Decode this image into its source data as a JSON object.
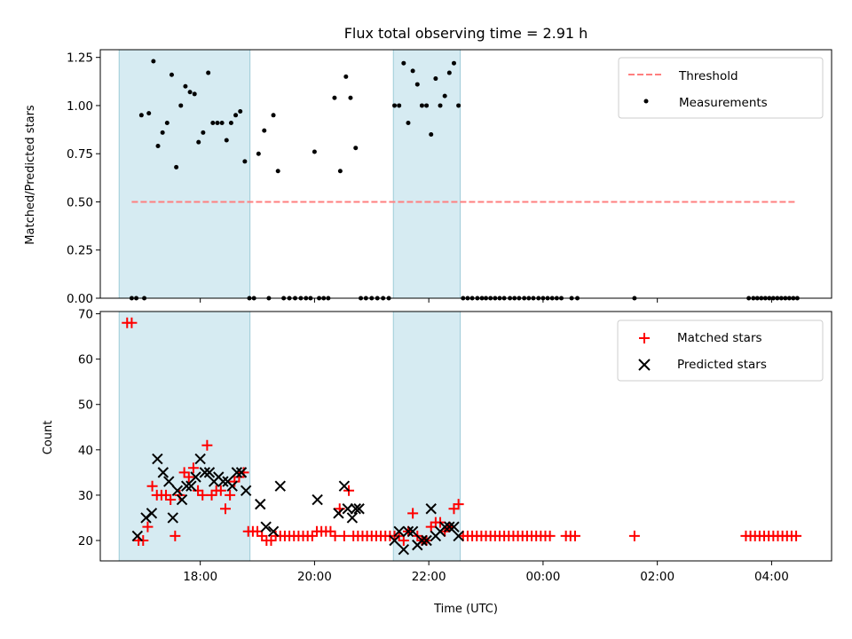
{
  "title": "Flux total observing time = 2.91 h",
  "chart_data": [
    {
      "type": "scatter",
      "panel": "top",
      "ylabel": "Matched/Predicted stars",
      "ylim": [
        0,
        1.29
      ],
      "yticks": [
        0,
        0.25,
        0.5,
        0.75,
        1.0,
        1.25
      ],
      "ytick_labels": [
        "0.00",
        "0.25",
        "0.50",
        "0.75",
        "1.00",
        "1.25"
      ],
      "xlim": [
        16.25,
        29.05
      ],
      "legend": {
        "position": "top-right",
        "entries": [
          "Threshold",
          "Measurements"
        ]
      },
      "threshold": {
        "name": "Threshold",
        "value": 0.5,
        "x_range": [
          16.8,
          28.45
        ],
        "color": "#ff7f7f"
      },
      "shaded_intervals": [
        [
          16.58,
          18.87
        ],
        [
          21.38,
          22.55
        ]
      ],
      "series": [
        {
          "name": "Measurements",
          "color": "#000000",
          "x": [
            16.8,
            16.88,
            16.97,
            17.02,
            17.1,
            17.18,
            17.26,
            17.34,
            17.42,
            17.5,
            17.58,
            17.66,
            17.74,
            17.82,
            17.9,
            17.97,
            18.05,
            18.14,
            18.22,
            18.3,
            18.38,
            18.46,
            18.54,
            18.62,
            18.7,
            18.78,
            18.86,
            18.94,
            19.02,
            19.12,
            19.2,
            19.28,
            19.36,
            19.46,
            19.56,
            19.66,
            19.76,
            19.85,
            19.93,
            20.0,
            20.08,
            20.16,
            20.24,
            20.35,
            20.45,
            20.55,
            20.63,
            20.72,
            20.81,
            20.9,
            21.0,
            21.1,
            21.2,
            21.3,
            21.4,
            21.48,
            21.56,
            21.64,
            21.72,
            21.8,
            21.88,
            21.96,
            22.04,
            22.12,
            22.2,
            22.28,
            22.36,
            22.44,
            22.52,
            22.6,
            22.68,
            22.76,
            22.85,
            22.93,
            23.0,
            23.08,
            23.16,
            23.24,
            23.32,
            23.42,
            23.5,
            23.58,
            23.67,
            23.75,
            23.83,
            23.92,
            24.0,
            24.08,
            24.16,
            24.24,
            24.32,
            24.5,
            24.6,
            25.6,
            27.6,
            27.68,
            27.75,
            27.82,
            27.89,
            27.96,
            28.03,
            28.1,
            28.17,
            28.24,
            28.31,
            28.38,
            28.45
          ],
          "y": [
            0.0,
            0.0,
            0.95,
            0.0,
            0.96,
            1.23,
            0.79,
            0.86,
            0.91,
            1.16,
            0.68,
            1.0,
            1.1,
            1.07,
            1.06,
            0.81,
            0.86,
            1.17,
            0.91,
            0.91,
            0.91,
            0.82,
            0.91,
            0.95,
            0.97,
            0.71,
            0.0,
            0.0,
            0.75,
            0.87,
            0.0,
            0.95,
            0.66,
            0.0,
            0.0,
            0.0,
            0.0,
            0.0,
            0.0,
            0.76,
            0.0,
            0.0,
            0.0,
            1.04,
            0.66,
            1.15,
            1.04,
            0.78,
            0.0,
            0.0,
            0.0,
            0.0,
            0.0,
            0.0,
            1.0,
            1.0,
            1.22,
            0.91,
            1.18,
            1.11,
            1.0,
            1.0,
            0.85,
            1.14,
            1.0,
            1.05,
            1.17,
            1.22,
            1.0,
            0.0,
            0.0,
            0.0,
            0.0,
            0.0,
            0.0,
            0.0,
            0.0,
            0.0,
            0.0,
            0.0,
            0.0,
            0.0,
            0.0,
            0.0,
            0.0,
            0.0,
            0.0,
            0.0,
            0.0,
            0.0,
            0.0,
            0.0,
            0.0,
            0.0,
            0.0,
            0.0,
            0.0,
            0.0,
            0.0,
            0.0,
            0.0,
            0.0,
            0.0,
            0.0,
            0.0,
            0.0,
            0.0
          ]
        }
      ]
    },
    {
      "type": "scatter",
      "panel": "bottom",
      "xlabel": "Time (UTC)",
      "ylabel": "Count",
      "ylim": [
        15.5,
        70.5
      ],
      "yticks": [
        20,
        30,
        40,
        50,
        60,
        70
      ],
      "ytick_labels": [
        "20",
        "30",
        "40",
        "50",
        "60",
        "70"
      ],
      "xlim": [
        16.25,
        29.05
      ],
      "xticks": [
        18,
        20,
        22,
        24,
        26,
        28
      ],
      "xtick_labels": [
        "18:00",
        "20:00",
        "22:00",
        "00:00",
        "02:00",
        "04:00"
      ],
      "legend": {
        "position": "top-right",
        "entries": [
          "Matched stars",
          "Predicted stars"
        ]
      },
      "shaded_intervals": [
        [
          16.58,
          18.87
        ],
        [
          21.38,
          22.55
        ]
      ],
      "series": [
        {
          "name": "Matched stars",
          "marker": "+",
          "color": "#ff0000",
          "x": [
            16.72,
            16.8,
            16.92,
            17.0,
            17.08,
            17.16,
            17.24,
            17.32,
            17.4,
            17.48,
            17.56,
            17.64,
            17.72,
            17.8,
            17.88,
            17.96,
            18.04,
            18.12,
            18.2,
            18.28,
            18.36,
            18.44,
            18.52,
            18.6,
            18.68,
            18.76,
            18.84,
            18.92,
            19.0,
            19.08,
            19.16,
            19.24,
            19.32,
            19.4,
            19.48,
            19.56,
            19.64,
            19.72,
            19.8,
            19.88,
            19.96,
            20.04,
            20.12,
            20.2,
            20.28,
            20.36,
            20.44,
            20.52,
            20.6,
            20.68,
            20.76,
            20.84,
            20.92,
            21.0,
            21.08,
            21.16,
            21.24,
            21.32,
            21.4,
            21.48,
            21.56,
            21.64,
            21.72,
            21.8,
            21.88,
            21.96,
            22.04,
            22.12,
            22.2,
            22.28,
            22.36,
            22.44,
            22.52,
            22.6,
            22.68,
            22.76,
            22.84,
            22.92,
            23.0,
            23.08,
            23.16,
            23.24,
            23.32,
            23.4,
            23.48,
            23.56,
            23.64,
            23.72,
            23.8,
            23.88,
            23.96,
            24.04,
            24.12,
            24.4,
            24.48,
            24.56,
            25.6,
            27.55,
            27.63,
            27.71,
            27.79,
            27.87,
            27.95,
            28.03,
            28.11,
            28.19,
            28.27,
            28.35,
            28.43
          ],
          "y": [
            68,
            68,
            20,
            20,
            23,
            32,
            30,
            30,
            30,
            29,
            21,
            30,
            35,
            34,
            36,
            31,
            30,
            41,
            30,
            31,
            31,
            27,
            30,
            33,
            34,
            35,
            22,
            22,
            22,
            21,
            20,
            20,
            21,
            21,
            21,
            21,
            21,
            21,
            21,
            21,
            21,
            22,
            22,
            22,
            22,
            21,
            27,
            21,
            31,
            21,
            21,
            21,
            21,
            21,
            21,
            21,
            21,
            21,
            21,
            21,
            20,
            22,
            26,
            21,
            20,
            20,
            23,
            24,
            24,
            22,
            23,
            27,
            28,
            21,
            21,
            21,
            21,
            21,
            21,
            21,
            21,
            21,
            21,
            21,
            21,
            21,
            21,
            21,
            21,
            21,
            21,
            21,
            21,
            21,
            21,
            21,
            21,
            21,
            21,
            21,
            21,
            21,
            21,
            21,
            21,
            21,
            21,
            21,
            21
          ]
        },
        {
          "name": "Predicted stars",
          "marker": "x",
          "color": "#000000",
          "x": [
            16.9,
            17.05,
            17.15,
            17.25,
            17.35,
            17.45,
            17.52,
            17.6,
            17.68,
            17.76,
            17.84,
            17.92,
            18.0,
            18.08,
            18.16,
            18.24,
            18.32,
            18.4,
            18.48,
            18.56,
            18.64,
            18.72,
            18.8,
            19.05,
            19.15,
            19.28,
            19.4,
            20.05,
            20.42,
            20.52,
            20.58,
            20.66,
            20.72,
            20.78,
            21.4,
            21.48,
            21.56,
            21.64,
            21.72,
            21.8,
            21.88,
            21.96,
            22.04,
            22.12,
            22.2,
            22.28,
            22.36,
            22.44,
            22.52
          ],
          "y": [
            21,
            25,
            26,
            38,
            35,
            33,
            25,
            31,
            29,
            32,
            32,
            34,
            38,
            35,
            35,
            33,
            34,
            33,
            33,
            32,
            35,
            35,
            31,
            28,
            23,
            22,
            32,
            29,
            26,
            32,
            27,
            25,
            27,
            27,
            20,
            22,
            18,
            22,
            22,
            19,
            20,
            20,
            27,
            21,
            22,
            23,
            23,
            23,
            21
          ]
        }
      ]
    }
  ]
}
